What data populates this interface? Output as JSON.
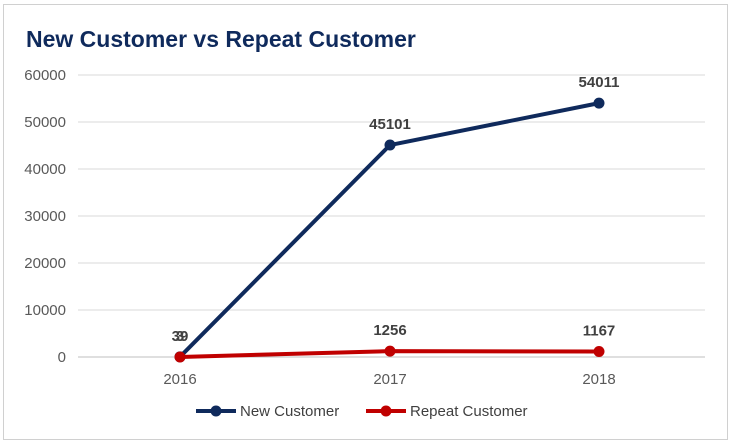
{
  "chart_data": {
    "type": "line",
    "title": "New Customer vs Repeat Customer",
    "categories": [
      "2016",
      "2017",
      "2018"
    ],
    "ylim": [
      0,
      60000
    ],
    "yticks": [
      0,
      10000,
      20000,
      30000,
      40000,
      50000,
      60000
    ],
    "grid": true,
    "legend_position": "bottom",
    "series": [
      {
        "name": "New Customer",
        "values": [
          39,
          45101,
          54011
        ],
        "color": "#0f2a5c"
      },
      {
        "name": "Repeat Customer",
        "values": [
          3,
          1256,
          1167
        ],
        "color": "#c00000"
      }
    ]
  }
}
